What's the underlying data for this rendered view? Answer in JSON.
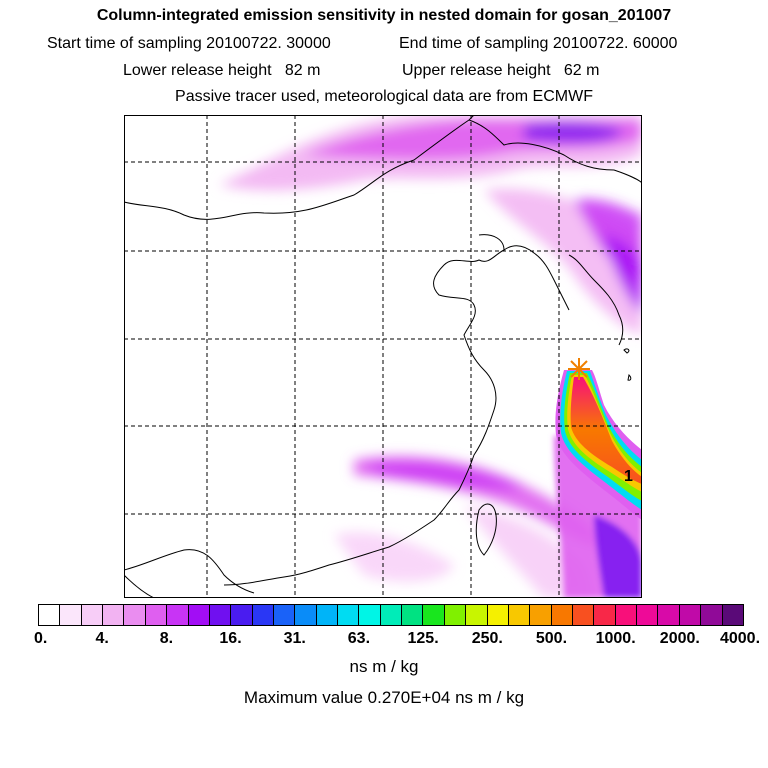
{
  "header": {
    "title": "Column-integrated emission sensitivity in nested domain for gosan_201007",
    "start_time": "Start time of sampling 20100722. 30000",
    "end_time": "End time of sampling 20100722. 60000",
    "lower_height": "Lower release height   82 m",
    "upper_height": "Upper release height   62 m",
    "tracer_note": "Passive tracer used, meteorological data are from ECMWF"
  },
  "map": {
    "release_marker_label": "1",
    "colors": {
      "coastline": "#000000",
      "grid": "#000000",
      "release_star": "#f08000"
    }
  },
  "colorbar": {
    "colors": [
      "#ffffff",
      "#fbe6fb",
      "#f7cdf7",
      "#f2b3f2",
      "#ea8df0",
      "#df5ff0",
      "#c834f5",
      "#a20df5",
      "#7010f0",
      "#4a1cf0",
      "#2a37f5",
      "#1a62f8",
      "#0a8cf8",
      "#00b4f8",
      "#00dcf2",
      "#00f5e6",
      "#00ecb8",
      "#00e282",
      "#19e61e",
      "#80f000",
      "#c8f500",
      "#f5f000",
      "#f8c800",
      "#f8a000",
      "#f87800",
      "#f85020",
      "#f82848",
      "#f8107a",
      "#ee0a98",
      "#d80aa8",
      "#c00aa8",
      "#900a98",
      "#5a0a78"
    ],
    "tick_labels": [
      "0.",
      "4.",
      "8.",
      "16.",
      "31.",
      "63.",
      "125.",
      "250.",
      "500.",
      "1000.",
      "2000.",
      "4000."
    ],
    "units": "ns m / kg",
    "max_value": "Maximum value  0.270E+04 ns m / kg"
  }
}
